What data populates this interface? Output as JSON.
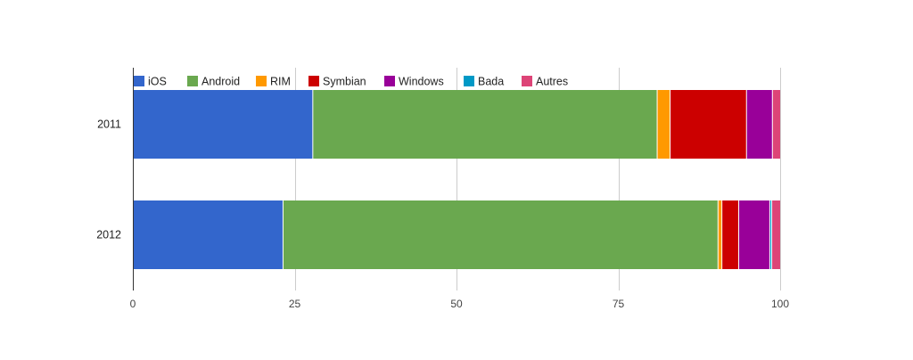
{
  "chart_data": {
    "type": "bar",
    "orientation": "horizontal",
    "stacked": true,
    "categories": [
      "2011",
      "2012"
    ],
    "series": [
      {
        "name": "iOS",
        "color": "#3366cc",
        "values": [
          27.8,
          23.2
        ]
      },
      {
        "name": "Android",
        "color": "#6aa84f",
        "values": [
          53.2,
          67.2
        ]
      },
      {
        "name": "RIM",
        "color": "#ff9900",
        "values": [
          2.0,
          0.6
        ]
      },
      {
        "name": "Symbian",
        "color": "#cc0000",
        "values": [
          11.8,
          2.6
        ]
      },
      {
        "name": "Windows",
        "color": "#990099",
        "values": [
          4.0,
          4.8
        ]
      },
      {
        "name": "Bada",
        "color": "#0099c6",
        "values": [
          0.0,
          0.3
        ]
      },
      {
        "name": "Autres",
        "color": "#dd4477",
        "values": [
          1.2,
          1.3
        ]
      }
    ],
    "xlim": [
      0,
      100
    ],
    "xticks": [
      0,
      25,
      50,
      75,
      100
    ],
    "grid": true,
    "legend_position": "top"
  }
}
